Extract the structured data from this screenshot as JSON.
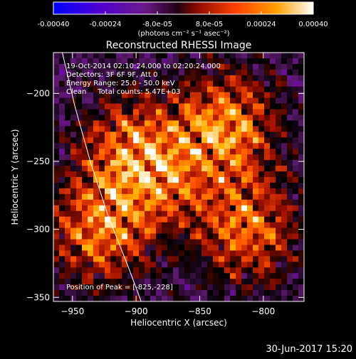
{
  "colorbar": {
    "ticks": [
      "-0.00040",
      "-0.00024",
      "-8.0e-05",
      "8.0e-05",
      "0.00024",
      "0.00040"
    ],
    "units": "(photons cm⁻² s⁻¹ asec⁻²)"
  },
  "plot": {
    "title": "Reconstructed RHESSI Image",
    "info": {
      "time": "19-Oct-2014 02:10:24.000 to 02:20:24.000",
      "detectors": "Detectors: 3F 6F 9F, Att 0",
      "energy": "Energy Range: 25.0 - 50.0 keV",
      "clean": "Clean     Total counts: 5.47E+03"
    },
    "peak": "Position of Peak = [-825,-228]",
    "footer": "30-Jun-2017 15:20"
  },
  "chart_data": {
    "type": "heatmap",
    "title": "Reconstructed RHESSI Image",
    "xlabel": "Heliocentric X (arcsec)",
    "ylabel": "Heliocentric Y (arcsec)",
    "xlim": [
      -965,
      -768
    ],
    "ylim": [
      -353,
      -170
    ],
    "x_ticks": [
      -950,
      -900,
      -850,
      -800
    ],
    "y_ticks": [
      -200,
      -250,
      -300,
      -350
    ],
    "color_range": [
      -0.0004,
      0.0004
    ],
    "colormap": [
      "#0000ff",
      "#7a00c8",
      "#5a1a6a",
      "#000000",
      "#a01000",
      "#ff5000",
      "#ffb000",
      "#ffffff"
    ],
    "limb_curve": [
      [
        -958,
        -170
      ],
      [
        -948,
        -210
      ],
      [
        -936,
        -250
      ],
      [
        -922,
        -290
      ],
      [
        -906,
        -328
      ],
      [
        -896,
        -353
      ]
    ],
    "peak": [
      -825,
      -228
    ],
    "sources": [
      {
        "x": -830,
        "y": -225,
        "strength": 1.0
      },
      {
        "x": -905,
        "y": -240,
        "strength": 0.75
      },
      {
        "x": -930,
        "y": -300,
        "strength": 0.9
      },
      {
        "x": -812,
        "y": -300,
        "strength": 0.85
      },
      {
        "x": -880,
        "y": -265,
        "strength": 0.55
      }
    ]
  }
}
